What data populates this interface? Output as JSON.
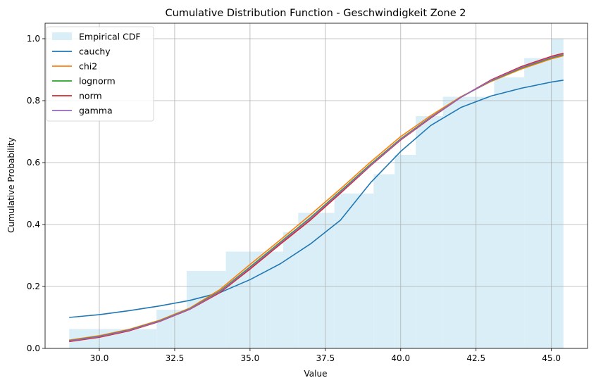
{
  "chart_data": {
    "type": "line",
    "title": "Cumulative Distribution Function - Geschwindigkeit Zone 2",
    "xlabel": "Value",
    "ylabel": "Cumulative Probability",
    "xlim": [
      28.2,
      46.2
    ],
    "ylim": [
      0,
      1.05
    ],
    "xticks": [
      30.0,
      32.5,
      35.0,
      37.5,
      40.0,
      42.5,
      45.0
    ],
    "xtick_labels": [
      "30.0",
      "32.5",
      "35.0",
      "37.5",
      "40.0",
      "42.5",
      "45.0"
    ],
    "yticks": [
      0.0,
      0.2,
      0.4,
      0.6,
      0.8,
      1.0
    ],
    "ytick_labels": [
      "0.0",
      "0.2",
      "0.4",
      "0.6",
      "0.8",
      "1.0"
    ],
    "grid": true,
    "legend_position": "top-left",
    "empirical_cdf": {
      "name": "Empirical CDF",
      "color": "#d9eef7",
      "bins": [
        {
          "x0": 29.0,
          "x1": 31.9,
          "y": 0.0625
        },
        {
          "x0": 31.9,
          "x1": 32.9,
          "y": 0.125
        },
        {
          "x0": 32.9,
          "x1": 34.2,
          "y": 0.25
        },
        {
          "x0": 34.2,
          "x1": 35.5,
          "y": 0.3125
        },
        {
          "x0": 35.5,
          "x1": 36.1,
          "y": 0.3125
        },
        {
          "x0": 36.1,
          "x1": 36.6,
          "y": 0.375
        },
        {
          "x0": 36.6,
          "x1": 37.8,
          "y": 0.4375
        },
        {
          "x0": 37.8,
          "x1": 39.1,
          "y": 0.5
        },
        {
          "x0": 39.1,
          "x1": 39.8,
          "y": 0.5625
        },
        {
          "x0": 39.8,
          "x1": 40.5,
          "y": 0.625
        },
        {
          "x0": 40.5,
          "x1": 41.4,
          "y": 0.75
        },
        {
          "x0": 41.4,
          "x1": 43.1,
          "y": 0.8125
        },
        {
          "x0": 43.1,
          "x1": 44.1,
          "y": 0.875
        },
        {
          "x0": 44.1,
          "x1": 45.0,
          "y": 0.9375
        },
        {
          "x0": 45.0,
          "x1": 45.4,
          "y": 1.0
        }
      ]
    },
    "series": [
      {
        "name": "cauchy",
        "color": "#1f77b4",
        "x": [
          29.0,
          30.0,
          31.0,
          32.0,
          33.0,
          34.0,
          35.0,
          36.0,
          37.0,
          38.0,
          39.0,
          40.0,
          41.0,
          42.0,
          43.0,
          44.0,
          45.0,
          45.4
        ],
        "y": [
          0.1,
          0.109,
          0.122,
          0.137,
          0.155,
          0.18,
          0.222,
          0.273,
          0.337,
          0.414,
          0.535,
          0.636,
          0.72,
          0.778,
          0.815,
          0.84,
          0.86,
          0.866
        ]
      },
      {
        "name": "chi2",
        "color": "#ff7f0e",
        "x": [
          29.0,
          30.0,
          31.0,
          32.0,
          33.0,
          34.0,
          35.0,
          36.0,
          37.0,
          38.0,
          39.0,
          40.0,
          41.0,
          42.0,
          43.0,
          44.0,
          45.0,
          45.4
        ],
        "y": [
          0.027,
          0.041,
          0.062,
          0.091,
          0.13,
          0.19,
          0.271,
          0.35,
          0.431,
          0.515,
          0.602,
          0.684,
          0.752,
          0.813,
          0.862,
          0.902,
          0.935,
          0.945
        ]
      },
      {
        "name": "lognorm",
        "color": "#2ca02c",
        "x": [
          29.0,
          30.0,
          31.0,
          32.0,
          33.0,
          34.0,
          35.0,
          36.0,
          37.0,
          38.0,
          39.0,
          40.0,
          41.0,
          42.0,
          43.0,
          44.0,
          45.0,
          45.4
        ],
        "y": [
          0.025,
          0.039,
          0.06,
          0.089,
          0.128,
          0.185,
          0.263,
          0.343,
          0.422,
          0.508,
          0.595,
          0.677,
          0.747,
          0.811,
          0.864,
          0.905,
          0.938,
          0.948
        ]
      },
      {
        "name": "norm",
        "color": "#d62728",
        "x": [
          29.0,
          30.0,
          31.0,
          32.0,
          33.0,
          34.0,
          35.0,
          36.0,
          37.0,
          38.0,
          39.0,
          40.0,
          41.0,
          42.0,
          43.0,
          44.0,
          45.0,
          45.4
        ],
        "y": [
          0.022,
          0.036,
          0.057,
          0.087,
          0.126,
          0.18,
          0.256,
          0.336,
          0.414,
          0.501,
          0.59,
          0.673,
          0.744,
          0.811,
          0.867,
          0.91,
          0.943,
          0.953
        ]
      },
      {
        "name": "gamma",
        "color": "#9467bd",
        "x": [
          29.0,
          30.0,
          31.0,
          32.0,
          33.0,
          34.0,
          35.0,
          36.0,
          37.0,
          38.0,
          39.0,
          40.0,
          41.0,
          42.0,
          43.0,
          44.0,
          45.0,
          45.4
        ],
        "y": [
          0.024,
          0.038,
          0.059,
          0.088,
          0.127,
          0.183,
          0.26,
          0.34,
          0.419,
          0.505,
          0.592,
          0.675,
          0.746,
          0.811,
          0.865,
          0.907,
          0.94,
          0.95
        ]
      }
    ]
  }
}
